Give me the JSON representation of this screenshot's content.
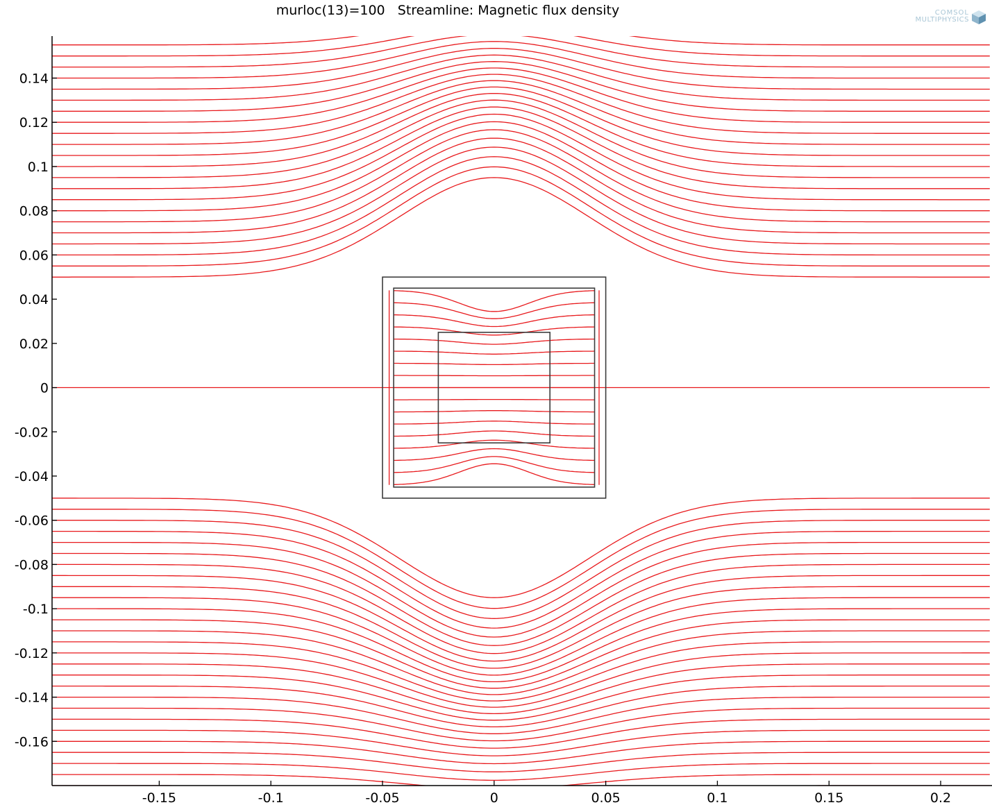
{
  "title": "murloc(13)=100   Streamline: Magnetic flux density",
  "logo": {
    "line1": "COMSOL",
    "line2": "MULTIPHYSICS"
  },
  "colors": {
    "streamline": "#e8191c",
    "geometry": "#3c3c3c",
    "axis": "#000000",
    "logo": "#a9c6d6"
  },
  "chart_data": {
    "type": "streamline",
    "xlim": [
      -0.198,
      0.223
    ],
    "ylim": [
      -0.18,
      0.159
    ],
    "x_ticks": [
      -0.15,
      -0.1,
      -0.05,
      0,
      0.05,
      0.1,
      0.15,
      0.2
    ],
    "x_tick_labels": [
      "-0.15",
      "-0.1",
      "-0.05",
      "0",
      "0.05",
      "0.1",
      "0.15",
      "0.2"
    ],
    "y_ticks": [
      0.14,
      0.12,
      0.1,
      0.08,
      0.06,
      0.04,
      0.02,
      0,
      -0.02,
      -0.04,
      -0.06,
      -0.08,
      -0.1,
      -0.12,
      -0.14,
      -0.16
    ],
    "y_tick_labels": [
      "0.14",
      "0.12",
      "0.1",
      "0.08",
      "0.06",
      "0.04",
      "0.02",
      "0",
      "-0.02",
      "-0.04",
      "-0.06",
      "-0.08",
      "-0.1",
      "-0.12",
      "-0.14",
      "-0.16"
    ],
    "geometry": [
      {
        "x": [
          -0.05,
          0.05
        ],
        "y": [
          -0.05,
          0.05
        ]
      },
      {
        "x": [
          -0.045,
          0.045
        ],
        "y": [
          -0.045,
          0.045
        ]
      },
      {
        "x": [
          -0.025,
          0.025
        ],
        "y": [
          -0.025,
          0.025
        ]
      }
    ],
    "streamlines": {
      "direction": "horizontal",
      "outer_spacing": 0.005,
      "inner_spacing": 0.0055,
      "outer_half_width": 0.05,
      "inner_half_width": 0.045
    }
  }
}
